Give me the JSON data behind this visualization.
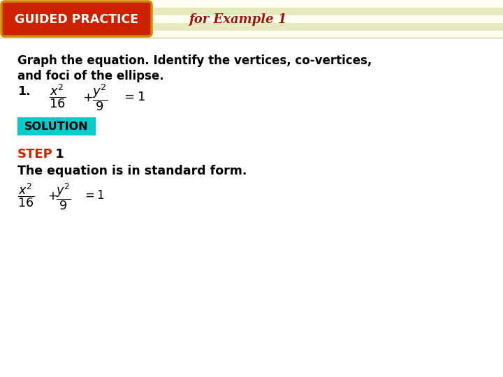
{
  "bg_color": "#f5f5dc",
  "stripe_light": "#fffff0",
  "stripe_dark": "#e8e8c0",
  "header_bg": "#cc2200",
  "header_border": "#cc8800",
  "header_text": "GUIDED PRACTICE",
  "header_text_color": "#ffffff",
  "for_example_text": "for Example 1",
  "for_example_color": "#aa1100",
  "body_bg": "#ffffff",
  "main_instruction_line1": "Graph the equation. Identify the vertices, co-vertices,",
  "main_instruction_line2": "and foci of the ellipse.",
  "main_instruction_color": "#000000",
  "problem_number": "1.",
  "solution_bg": "#00cccc",
  "solution_text": "SOLUTION",
  "solution_text_color": "#000000",
  "step_label": "STEP",
  "step_number": " 1",
  "step_color": "#cc2200",
  "step_body_color": "#000000",
  "step_body_text": "The equation is in standard form.",
  "fig_width": 7.2,
  "fig_height": 5.4,
  "dpi": 100
}
